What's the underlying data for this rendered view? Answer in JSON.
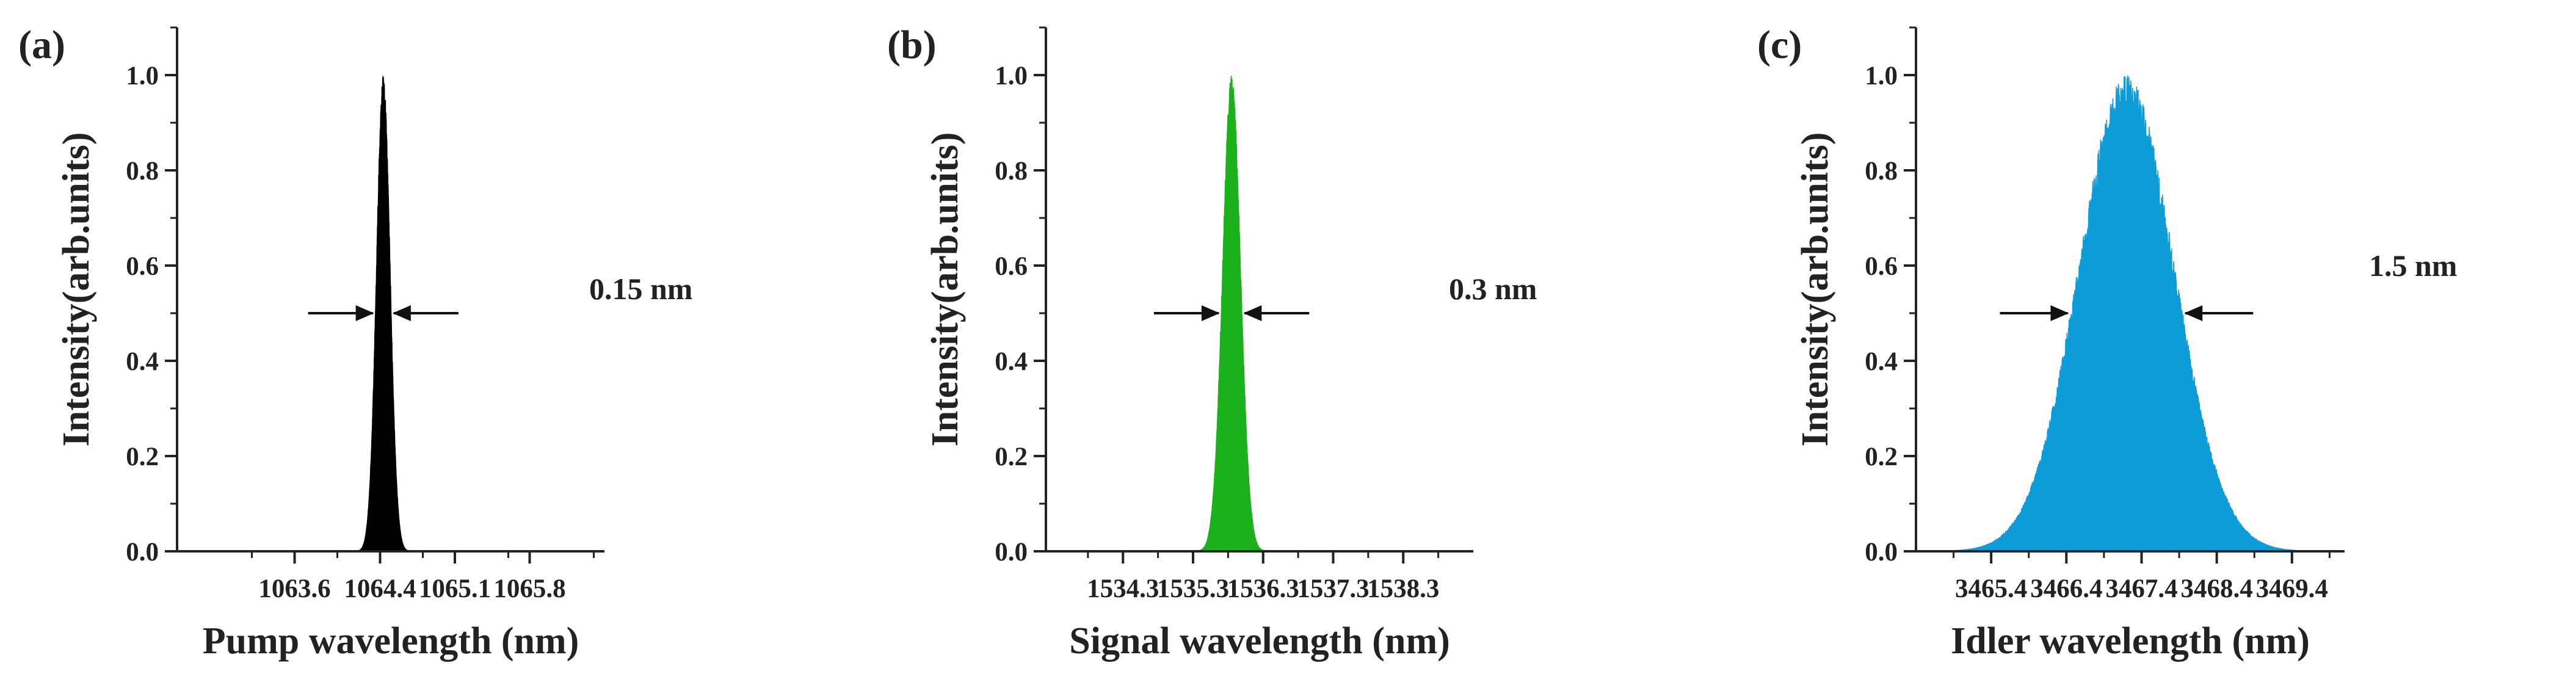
{
  "chart_data": [
    {
      "type": "area",
      "panel_label": "(a)",
      "xlabel": "Pump wavelength (nm)",
      "ylabel": "Intensity(arb.units)",
      "xlim": [
        1062.5,
        1066.5
      ],
      "ylim": [
        0,
        1.1
      ],
      "xticks": [
        "1063.6",
        "1064.4",
        "1065.1",
        "1065.8"
      ],
      "xtick_values": [
        1063.6,
        1064.4,
        1065.1,
        1065.8
      ],
      "yticks": [
        "0.0",
        "0.2",
        "0.4",
        "0.6",
        "0.8",
        "1.0"
      ],
      "ytick_values": [
        0,
        0.2,
        0.4,
        0.6,
        0.8,
        1.0
      ],
      "series": [
        {
          "color": "#000000",
          "center": 1064.43,
          "fwhm": 0.15,
          "peak": 1.0
        }
      ],
      "annotation": {
        "text": "0.15 nm",
        "level": 0.5
      }
    },
    {
      "type": "area",
      "panel_label": "(b)",
      "xlabel": "Signal wavelength (nm)",
      "ylabel": "Intensity(arb.units)",
      "xlim": [
        1533.2,
        1539.3
      ],
      "ylim": [
        0,
        1.1
      ],
      "xticks": [
        "1534.3",
        "1535.3",
        "1536.3",
        "1537.3",
        "1538.3"
      ],
      "xtick_values": [
        1534.3,
        1535.3,
        1536.3,
        1537.3,
        1538.3
      ],
      "yticks": [
        "0.0",
        "0.2",
        "0.4",
        "0.6",
        "0.8",
        "1.0"
      ],
      "ytick_values": [
        0,
        0.2,
        0.4,
        0.6,
        0.8,
        1.0
      ],
      "series": [
        {
          "color": "#1ab11a",
          "center": 1535.85,
          "fwhm": 0.3,
          "peak": 1.0
        }
      ],
      "annotation": {
        "text": "0.3 nm",
        "level": 0.5
      }
    },
    {
      "type": "area",
      "panel_label": "(c)",
      "xlabel": "Idler wavelength (nm)",
      "ylabel": "Intensity(arb.units)",
      "xlim": [
        3464.4,
        3470.1
      ],
      "ylim": [
        0,
        1.1
      ],
      "xticks": [
        "3465.4",
        "3466.4",
        "3467.4",
        "3468.4",
        "3469.4"
      ],
      "xtick_values": [
        3465.4,
        3466.4,
        3467.4,
        3468.4,
        3469.4
      ],
      "yticks": [
        "0.0",
        "0.2",
        "0.4",
        "0.6",
        "0.8",
        "1.0"
      ],
      "ytick_values": [
        0,
        0.2,
        0.4,
        0.6,
        0.8,
        1.0
      ],
      "series": [
        {
          "color": "#0c9dd8",
          "center": 3467.2,
          "fwhm": 1.5,
          "peak": 1.0
        }
      ],
      "annotation": {
        "text": "1.5 nm",
        "level": 0.5
      }
    }
  ]
}
